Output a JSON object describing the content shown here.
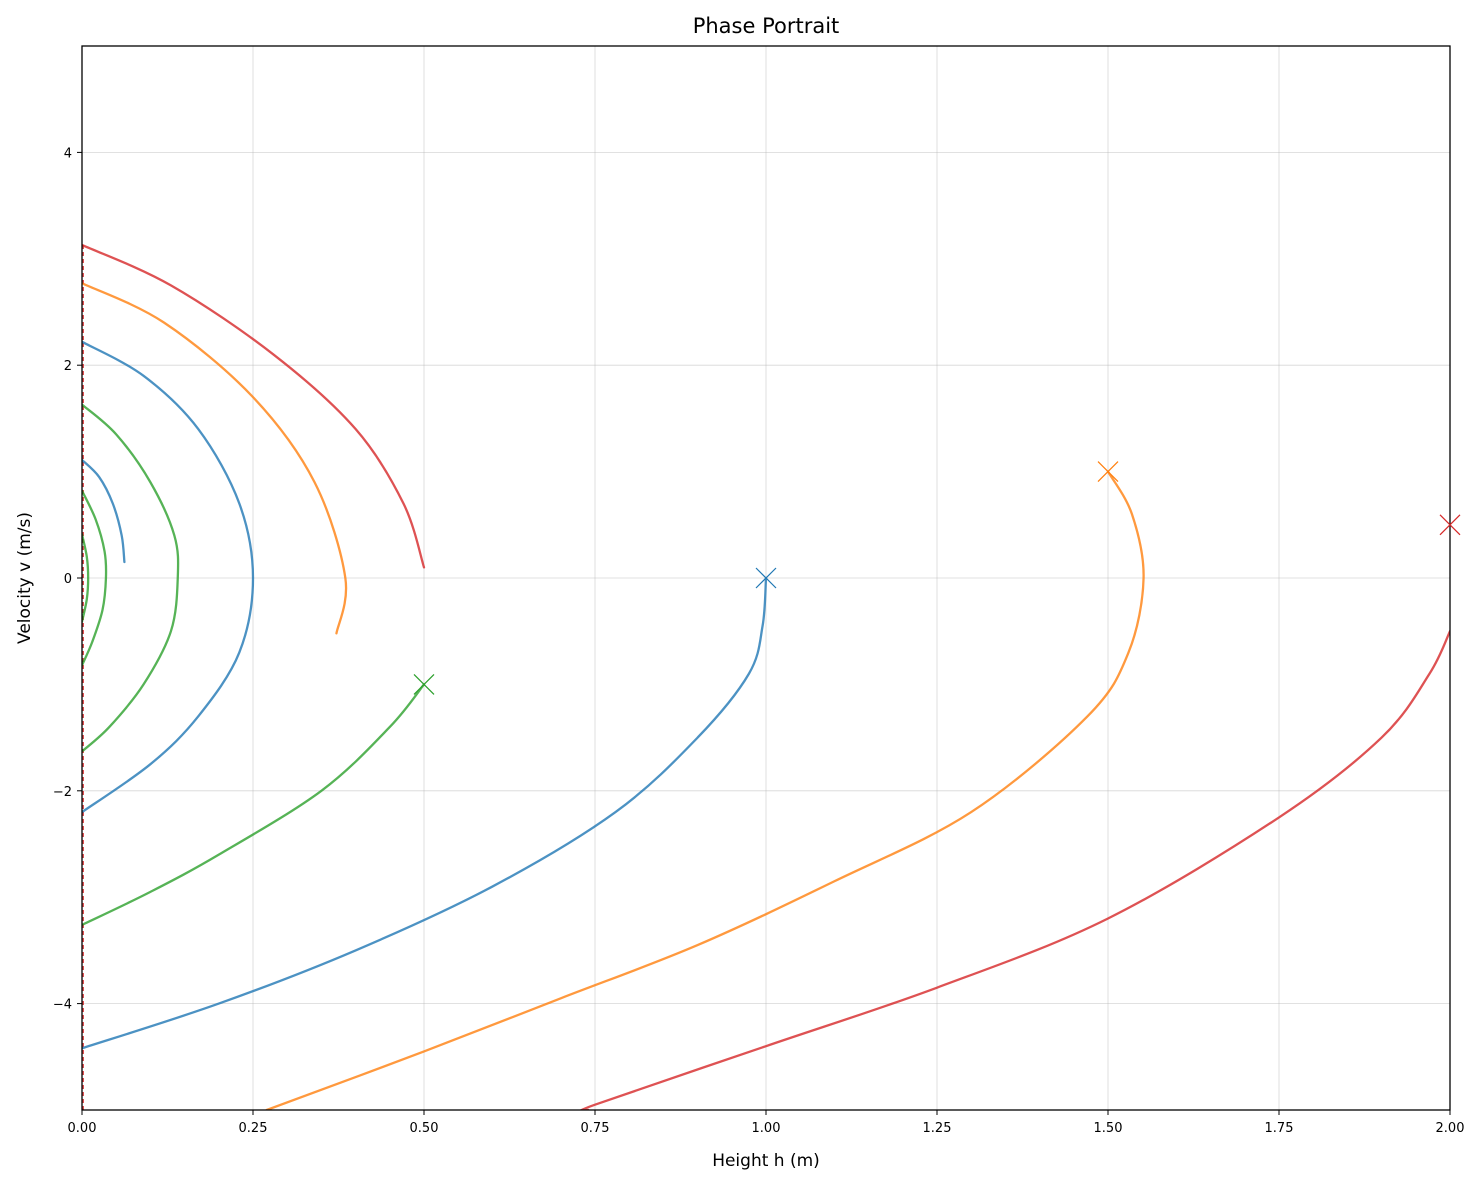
{
  "chart_data": {
    "type": "line",
    "title": "Phase Portrait",
    "xlabel": "Height h (m)",
    "ylabel": "Velocity v (m/s)",
    "xlim": [
      0,
      2
    ],
    "ylim": [
      -5,
      5
    ],
    "xticks": [
      "0.00",
      "0.25",
      "0.50",
      "0.75",
      "1.00",
      "1.25",
      "1.50",
      "1.75",
      "2.00"
    ],
    "yticks": [
      "−4",
      "−2",
      "0",
      "2",
      "4"
    ],
    "grid": true,
    "colors": {
      "blue": "#1f77b4",
      "orange": "#ff7f0e",
      "green": "#2ca02c",
      "red": "#d62728"
    },
    "series": [
      {
        "color": "blue",
        "start_marker": {
          "h": 1.0,
          "v": 0.0
        },
        "points": [
          [
            1.0,
            0.0
          ],
          [
            0.995,
            -0.45
          ],
          [
            0.975,
            -0.9
          ],
          [
            0.9,
            -1.5
          ],
          [
            0.78,
            -2.2
          ],
          [
            0.6,
            -2.9
          ],
          [
            0.4,
            -3.5
          ],
          [
            0.2,
            -4.0
          ],
          [
            0.0,
            -4.42
          ]
        ]
      },
      {
        "color": "blue",
        "points": [
          [
            0.0,
            2.22
          ],
          [
            0.09,
            1.9
          ],
          [
            0.17,
            1.4
          ],
          [
            0.23,
            0.7
          ],
          [
            0.25,
            0.0
          ],
          [
            0.23,
            -0.7
          ],
          [
            0.17,
            -1.3
          ],
          [
            0.1,
            -1.75
          ],
          [
            0.0,
            -2.2
          ]
        ]
      },
      {
        "color": "blue",
        "points": [
          [
            0.0,
            1.11
          ],
          [
            0.025,
            0.95
          ],
          [
            0.045,
            0.7
          ],
          [
            0.058,
            0.4
          ],
          [
            0.062,
            0.15
          ]
        ]
      },
      {
        "color": "orange",
        "start_marker": {
          "h": 1.5,
          "v": 1.0
        },
        "points": [
          [
            1.5,
            1.0
          ],
          [
            1.535,
            0.6
          ],
          [
            1.552,
            0.0
          ],
          [
            1.53,
            -0.7
          ],
          [
            1.47,
            -1.3
          ],
          [
            1.3,
            -2.2
          ],
          [
            1.1,
            -2.85
          ],
          [
            0.9,
            -3.45
          ],
          [
            0.7,
            -3.95
          ],
          [
            0.5,
            -4.45
          ],
          [
            0.27,
            -5.0
          ]
        ]
      },
      {
        "color": "orange",
        "points": [
          [
            0.0,
            2.77
          ],
          [
            0.12,
            2.4
          ],
          [
            0.25,
            1.7
          ],
          [
            0.34,
            0.9
          ],
          [
            0.385,
            0.0
          ],
          [
            0.372,
            -0.52
          ]
        ]
      },
      {
        "color": "red",
        "start_marker": {
          "h": 2.0,
          "v": 0.5
        },
        "points": [
          [
            2.0,
            -0.5
          ],
          [
            1.97,
            -0.9
          ],
          [
            1.9,
            -1.5
          ],
          [
            1.75,
            -2.25
          ],
          [
            1.5,
            -3.2
          ],
          [
            1.25,
            -3.85
          ],
          [
            1.0,
            -4.4
          ],
          [
            0.75,
            -4.95
          ],
          [
            0.74,
            -5.0
          ]
        ]
      },
      {
        "color": "red",
        "points": [
          [
            0.0,
            3.13
          ],
          [
            0.13,
            2.75
          ],
          [
            0.28,
            2.1
          ],
          [
            0.4,
            1.4
          ],
          [
            0.47,
            0.7
          ],
          [
            0.5,
            0.1
          ]
        ]
      },
      {
        "color": "green",
        "start_marker": {
          "h": 0.5,
          "v": -1.0
        },
        "points": [
          [
            0.5,
            -1.0
          ],
          [
            0.45,
            -1.4
          ],
          [
            0.35,
            -2.0
          ],
          [
            0.2,
            -2.6
          ],
          [
            0.1,
            -2.95
          ],
          [
            0.0,
            -3.26
          ]
        ]
      },
      {
        "color": "green",
        "points": [
          [
            0.0,
            1.63
          ],
          [
            0.05,
            1.35
          ],
          [
            0.1,
            0.9
          ],
          [
            0.135,
            0.4
          ],
          [
            0.14,
            0.0
          ],
          [
            0.13,
            -0.5
          ],
          [
            0.09,
            -1.0
          ],
          [
            0.04,
            -1.4
          ],
          [
            0.0,
            -1.63
          ]
        ]
      },
      {
        "color": "green",
        "points": [
          [
            0.0,
            0.82
          ],
          [
            0.02,
            0.55
          ],
          [
            0.033,
            0.25
          ],
          [
            0.035,
            0.0
          ],
          [
            0.03,
            -0.3
          ],
          [
            0.015,
            -0.6
          ],
          [
            0.0,
            -0.82
          ]
        ]
      },
      {
        "color": "green",
        "points": [
          [
            0.0,
            0.41
          ],
          [
            0.007,
            0.2
          ],
          [
            0.009,
            0.0
          ],
          [
            0.007,
            -0.2
          ],
          [
            0.0,
            -0.41
          ]
        ]
      }
    ]
  }
}
